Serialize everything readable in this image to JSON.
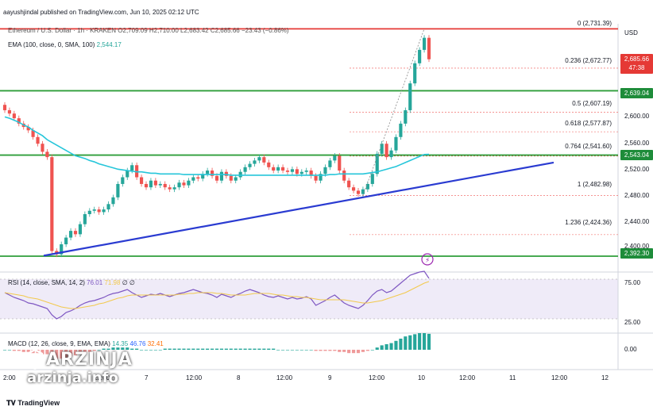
{
  "header": {
    "publisher": "aayushjindal published on TradingView.com, Jun 10, 2025 02:12 UTC",
    "symbol": "Ethereum / U.S. Dollar · 1h · KRAKEN",
    "ohlc": "O2,709.09 H2,710.00 L2,683.42 C2,685.66 −23.43 (−0.86%)",
    "currency": "USD"
  },
  "ema_legend": {
    "label": "EMA (100, close, 0, SMA, 100)",
    "value": "2,544.17"
  },
  "rsi_legend": {
    "label": "RSI (14, close, SMA, 14, 2)",
    "value": "76.01",
    "ma_value": "71.98",
    "extra": "∅ ∅"
  },
  "macd_legend": {
    "label": "MACD (12, 26, close, 9, EMA, EMA)",
    "v1": "14.35",
    "v2": "46.76",
    "v3": "32.41"
  },
  "fib_levels": [
    {
      "label": "0 (2,731.39)",
      "price": 2731.39
    },
    {
      "label": "0.236 (2,672.77)",
      "price": 2672.77
    },
    {
      "label": "0.5 (2,607.19)",
      "price": 2607.19
    },
    {
      "label": "0.618 (2,577.87)",
      "price": 2577.87
    },
    {
      "label": "0.764 (2,541.60)",
      "price": 2541.6
    },
    {
      "label": "1 (2,482.98)",
      "price": 2482.98
    },
    {
      "label": "1.236 (2,424.36)",
      "price": 2424.36
    }
  ],
  "price_chips": {
    "current": "2,685.66",
    "countdown": "47:38",
    "resistance_1": "2,639.04",
    "resistance_2": "2,543.04",
    "support": "2,392.30"
  },
  "price_ticks": [
    "2,600.00",
    "2,560.00",
    "2,520.00",
    "2,480.00",
    "2,440.00",
    "2,400.00"
  ],
  "rsi_ticks": [
    "75.00",
    "25.00"
  ],
  "macd_ticks": [
    "0.00"
  ],
  "time_ticks": [
    "2:00",
    "12:00",
    "7",
    "12:00",
    "8",
    "12:00",
    "9",
    "12:00",
    "10",
    "12:00",
    "11",
    "12:00",
    "12"
  ],
  "footer": {
    "tradingview": "TradingView"
  },
  "watermark": {
    "brand": "ARZINJA",
    "url": "arzinja.info"
  },
  "colors": {
    "up": "#26a69a",
    "down": "#ef5350",
    "ema": "#26c6da",
    "trendline": "#2a3bd1",
    "level": "#2e9e3a",
    "top_level": "#e53935",
    "rsi": "#7e57c2",
    "rsi_ma": "#f2c94c"
  },
  "chart_data": {
    "type": "candlestick",
    "ylim": [
      2384,
      2746
    ],
    "closes": [
      2610,
      2605,
      2598,
      2590,
      2585,
      2580,
      2570,
      2560,
      2548,
      2540,
      2400,
      2395,
      2410,
      2420,
      2430,
      2425,
      2440,
      2455,
      2460,
      2462,
      2458,
      2462,
      2470,
      2480,
      2500,
      2510,
      2520,
      2528,
      2510,
      2500,
      2495,
      2505,
      2498,
      2500,
      2495,
      2492,
      2495,
      2502,
      2498,
      2505,
      2510,
      2508,
      2515,
      2520,
      2512,
      2505,
      2518,
      2512,
      2505,
      2510,
      2518,
      2525,
      2530,
      2535,
      2540,
      2532,
      2525,
      2520,
      2525,
      2520,
      2518,
      2522,
      2515,
      2518,
      2520,
      2512,
      2505,
      2515,
      2525,
      2535,
      2542,
      2520,
      2505,
      2495,
      2490,
      2485,
      2492,
      2500,
      2515,
      2545,
      2560,
      2540,
      2550,
      2570,
      2590,
      2610,
      2650,
      2680,
      2700,
      2718,
      2686
    ],
    "ema100": [
      2600,
      2598,
      2595,
      2592,
      2588,
      2585,
      2580,
      2576,
      2572,
      2566,
      2562,
      2558,
      2554,
      2550,
      2546,
      2542,
      2540,
      2538,
      2535,
      2533,
      2530,
      2528,
      2526,
      2524,
      2522,
      2521,
      2520,
      2519,
      2518,
      2518,
      2517,
      2516,
      2516,
      2515,
      2515,
      2515,
      2515,
      2515,
      2514,
      2514,
      2514,
      2514,
      2514,
      2514,
      2514,
      2514,
      2514,
      2514,
      2513,
      2513,
      2513,
      2513,
      2513,
      2513,
      2513,
      2513,
      2513,
      2513,
      2513,
      2513,
      2513,
      2513,
      2513,
      2513,
      2513,
      2513,
      2513,
      2513,
      2513,
      2514,
      2514,
      2515,
      2515,
      2515,
      2515,
      2515,
      2515,
      2516,
      2517,
      2518,
      2520,
      2522,
      2524,
      2526,
      2529,
      2532,
      2535,
      2538,
      2541,
      2544,
      2544.17
    ],
    "trendline": {
      "from": {
        "price": 2393
      },
      "to": {
        "price": 2532
      }
    },
    "levels": [
      2731.39,
      2639.04,
      2543.04,
      2392.3
    ],
    "rsi": [
      58,
      55,
      52,
      50,
      48,
      45,
      44,
      42,
      40,
      38,
      30,
      25,
      28,
      33,
      35,
      38,
      42,
      45,
      47,
      48,
      50,
      52,
      55,
      57,
      58,
      60,
      62,
      58,
      55,
      52,
      54,
      56,
      55,
      57,
      55,
      53,
      55,
      57,
      58,
      60,
      62,
      60,
      58,
      57,
      55,
      52,
      56,
      54,
      52,
      55,
      57,
      60,
      62,
      60,
      58,
      55,
      53,
      52,
      54,
      52,
      50,
      52,
      50,
      51,
      53,
      50,
      42,
      45,
      48,
      52,
      55,
      50,
      45,
      42,
      40,
      38,
      42,
      48,
      55,
      60,
      62,
      58,
      60,
      65,
      70,
      75,
      80,
      82,
      84,
      85,
      76
    ],
    "rsi_ma": [
      58,
      57,
      56,
      55,
      54,
      52,
      51,
      50,
      48,
      46,
      44,
      42,
      40,
      39,
      38,
      38,
      39,
      40,
      41,
      42,
      44,
      45,
      47,
      49,
      51,
      52,
      54,
      55,
      55,
      55,
      55,
      55,
      55,
      55,
      55,
      55,
      55,
      56,
      56,
      57,
      57,
      58,
      58,
      58,
      58,
      57,
      57,
      56,
      55,
      55,
      55,
      55,
      56,
      57,
      57,
      57,
      57,
      56,
      55,
      55,
      54,
      53,
      53,
      52,
      52,
      51,
      50,
      49,
      49,
      49,
      49,
      49,
      49,
      48,
      47,
      46,
      45,
      45,
      46,
      47,
      48,
      50,
      52,
      54,
      56,
      58,
      61,
      64,
      67,
      70,
      71.98
    ],
    "macd_hist": [
      0,
      0,
      -1,
      -1,
      -2,
      -2,
      -3,
      -3,
      -4,
      -4,
      -6,
      -8,
      -8,
      -7,
      -6,
      -5,
      -4,
      -3,
      -2,
      -1,
      0,
      1,
      1,
      2,
      2,
      2,
      2,
      1,
      1,
      0,
      0,
      0,
      0,
      0,
      1,
      1,
      1,
      1,
      1,
      1,
      1,
      1,
      1,
      1,
      1,
      1,
      1,
      1,
      1,
      1,
      1,
      1,
      1,
      1,
      1,
      1,
      1,
      1,
      0,
      0,
      0,
      0,
      0,
      0,
      0,
      0,
      -1,
      -1,
      -1,
      -1,
      -1,
      -2,
      -2,
      -3,
      -3,
      -3,
      -2,
      -1,
      0,
      2,
      4,
      5,
      6,
      8,
      10,
      12,
      13,
      14,
      15,
      15,
      14.35
    ]
  }
}
